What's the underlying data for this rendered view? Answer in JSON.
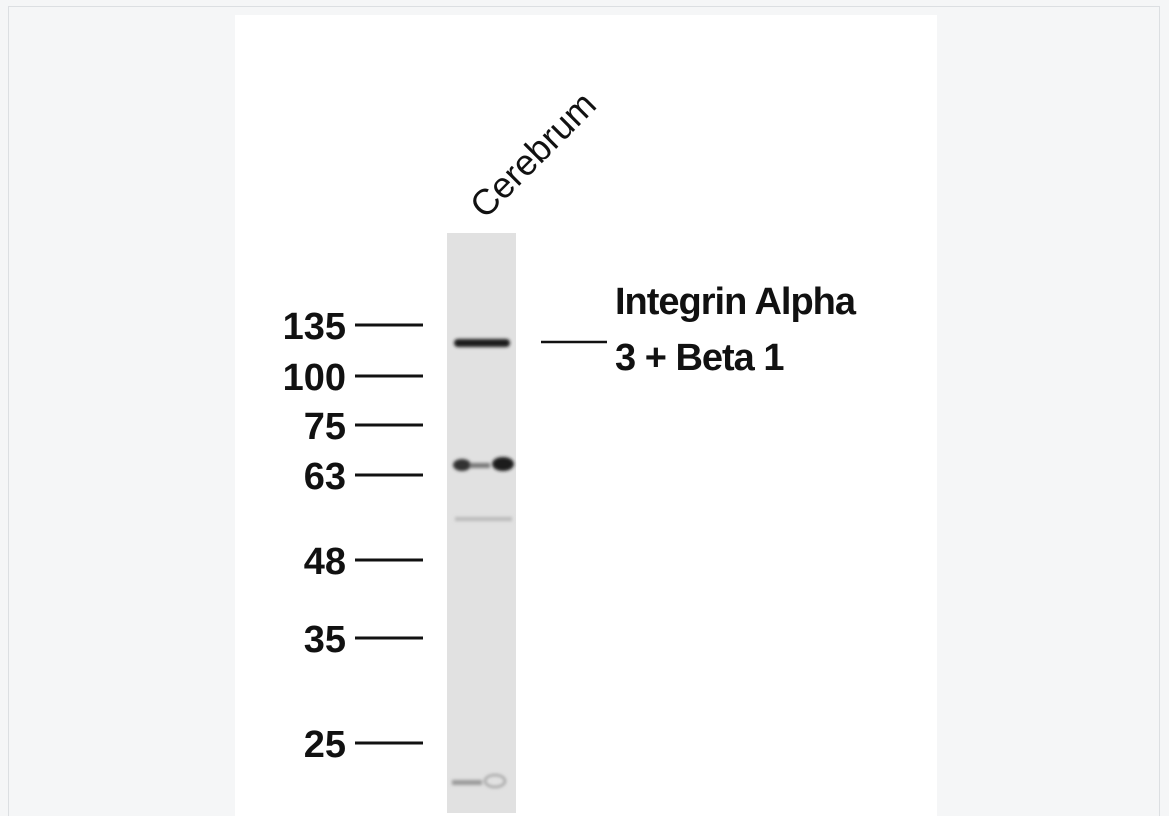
{
  "lane": {
    "label": "Cerebrum"
  },
  "markers": [
    135,
    100,
    75,
    63,
    48,
    35,
    25
  ],
  "target": {
    "lines": [
      "Integrin Alpha",
      "3 + Beta 1"
    ]
  }
}
